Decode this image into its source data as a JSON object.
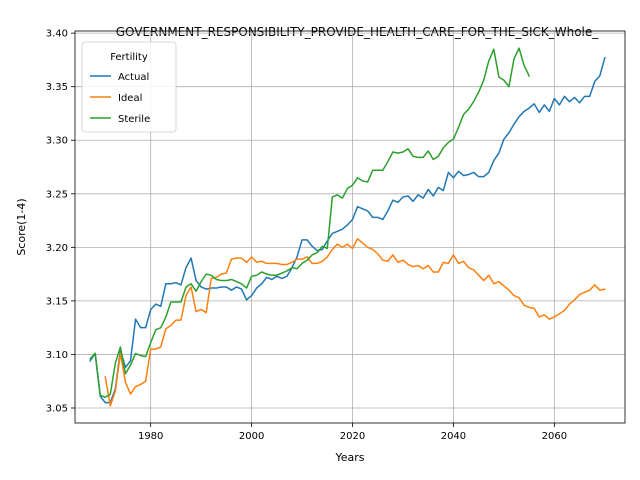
{
  "chart_data": {
    "type": "line",
    "title": "GOVERNMENT_RESPONSIBILITY_PROVIDE_HEALTH_CARE_FOR_THE_SICK_Whole_",
    "xlabel": "Years",
    "ylabel": "Score(1-4)",
    "xlim": [
      1965,
      2074
    ],
    "ylim": [
      3.036,
      3.402
    ],
    "xticks": [
      1980,
      2000,
      2020,
      2040,
      2060
    ],
    "yticks": [
      3.05,
      3.1,
      3.15,
      3.2,
      3.25,
      3.3,
      3.35,
      3.4
    ],
    "xtick_labels": [
      "1980",
      "2000",
      "2020",
      "2040",
      "2060"
    ],
    "ytick_labels": [
      "3.05",
      "3.10",
      "3.15",
      "3.20",
      "3.25",
      "3.30",
      "3.35",
      "3.40"
    ],
    "grid": true,
    "legend": {
      "title": "Fertility",
      "position": "upper-left"
    },
    "series": [
      {
        "name": "Actual",
        "color": "#1f77b4",
        "x": [
          1968,
          1969,
          1970,
          1971,
          1972,
          1973,
          1974,
          1975,
          1976,
          1977,
          1978,
          1979,
          1980,
          1981,
          1982,
          1983,
          1984,
          1985,
          1986,
          1987,
          1988,
          1989,
          1990,
          1991,
          1992,
          1993,
          1994,
          1995,
          1996,
          1997,
          1998,
          1999,
          2000,
          2001,
          2002,
          2003,
          2004,
          2005,
          2006,
          2007,
          2008,
          2009,
          2010,
          2011,
          2012,
          2013,
          2014,
          2015,
          2016,
          2017,
          2018,
          2019,
          2020,
          2021,
          2022,
          2023,
          2024,
          2025,
          2026,
          2027,
          2028,
          2029,
          2030,
          2031,
          2032,
          2033,
          2034,
          2035,
          2036,
          2037,
          2038,
          2039,
          2040,
          2041,
          2042,
          2043,
          2044,
          2045,
          2046,
          2047,
          2048,
          2049,
          2050,
          2051,
          2052,
          2053,
          2054,
          2055,
          2056,
          2057,
          2058,
          2059,
          2060,
          2061,
          2062,
          2063,
          2064,
          2065,
          2066,
          2067,
          2068,
          2069,
          2070
        ],
        "y": [
          3.094,
          3.101,
          3.061,
          3.055,
          3.055,
          3.068,
          3.104,
          3.088,
          3.094,
          3.133,
          3.125,
          3.125,
          3.142,
          3.147,
          3.145,
          3.166,
          3.166,
          3.167,
          3.165,
          3.181,
          3.19,
          3.169,
          3.163,
          3.161,
          3.162,
          3.162,
          3.163,
          3.163,
          3.16,
          3.163,
          3.161,
          3.151,
          3.155,
          3.162,
          3.166,
          3.172,
          3.17,
          3.173,
          3.171,
          3.173,
          3.181,
          3.191,
          3.207,
          3.207,
          3.201,
          3.197,
          3.198,
          3.206,
          3.213,
          3.215,
          3.217,
          3.221,
          3.226,
          3.238,
          3.236,
          3.234,
          3.228,
          3.228,
          3.226,
          3.234,
          3.244,
          3.242,
          3.247,
          3.248,
          3.243,
          3.249,
          3.246,
          3.254,
          3.248,
          3.256,
          3.253,
          3.27,
          3.265,
          3.271,
          3.267,
          3.268,
          3.27,
          3.266,
          3.266,
          3.27,
          3.281,
          3.288,
          3.301,
          3.307,
          3.315,
          3.322,
          3.327,
          3.33,
          3.334,
          3.326,
          3.333,
          3.327,
          3.339,
          3.333,
          3.341,
          3.336,
          3.34,
          3.335,
          3.341,
          3.341,
          3.355,
          3.36,
          3.377
        ]
      },
      {
        "name": "Ideal",
        "color": "#ff7f0e",
        "x": [
          1971,
          1972,
          1973,
          1974,
          1975,
          1976,
          1977,
          1978,
          1979,
          1980,
          1981,
          1982,
          1983,
          1984,
          1985,
          1986,
          1987,
          1988,
          1989,
          1990,
          1991,
          1992,
          1993,
          1994,
          1995,
          1996,
          1997,
          1998,
          1999,
          2000,
          2001,
          2002,
          2003,
          2004,
          2005,
          2006,
          2007,
          2008,
          2009,
          2010,
          2011,
          2012,
          2013,
          2014,
          2015,
          2016,
          2017,
          2018,
          2019,
          2020,
          2021,
          2022,
          2023,
          2024,
          2025,
          2026,
          2027,
          2028,
          2029,
          2030,
          2031,
          2032,
          2033,
          2034,
          2035,
          2036,
          2037,
          2038,
          2039,
          2040,
          2041,
          2042,
          2043,
          2044,
          2045,
          2046,
          2047,
          2048,
          2049,
          2050,
          2051,
          2052,
          2053,
          2054,
          2055,
          2056,
          2057,
          2058,
          2059,
          2060,
          2061,
          2062,
          2063,
          2064,
          2065,
          2066,
          2067,
          2068,
          2069,
          2070
        ],
        "y": [
          3.079,
          3.052,
          3.066,
          3.101,
          3.074,
          3.063,
          3.07,
          3.072,
          3.075,
          3.105,
          3.105,
          3.107,
          3.124,
          3.127,
          3.132,
          3.132,
          3.155,
          3.163,
          3.14,
          3.142,
          3.139,
          3.171,
          3.172,
          3.175,
          3.176,
          3.189,
          3.19,
          3.19,
          3.186,
          3.191,
          3.186,
          3.187,
          3.185,
          3.185,
          3.185,
          3.184,
          3.184,
          3.186,
          3.189,
          3.189,
          3.191,
          3.185,
          3.185,
          3.187,
          3.191,
          3.198,
          3.203,
          3.2,
          3.203,
          3.199,
          3.208,
          3.204,
          3.2,
          3.198,
          3.194,
          3.188,
          3.187,
          3.193,
          3.186,
          3.188,
          3.184,
          3.182,
          3.183,
          3.18,
          3.183,
          3.177,
          3.177,
          3.186,
          3.185,
          3.193,
          3.185,
          3.187,
          3.181,
          3.179,
          3.174,
          3.169,
          3.174,
          3.166,
          3.168,
          3.164,
          3.16,
          3.155,
          3.153,
          3.146,
          3.144,
          3.143,
          3.135,
          3.137,
          3.133,
          3.135,
          3.138,
          3.141,
          3.147,
          3.151,
          3.156,
          3.158,
          3.16,
          3.165,
          3.16,
          3.161
        ]
      },
      {
        "name": "Sterile",
        "color": "#2ca02c",
        "x": [
          1968,
          1969,
          1970,
          1971,
          1972,
          1973,
          1974,
          1975,
          1976,
          1977,
          1978,
          1979,
          1980,
          1981,
          1982,
          1983,
          1984,
          1985,
          1986,
          1987,
          1988,
          1989,
          1990,
          1991,
          1992,
          1993,
          1994,
          1995,
          1996,
          1997,
          1998,
          1999,
          2000,
          2001,
          2002,
          2003,
          2004,
          2005,
          2006,
          2007,
          2008,
          2009,
          2010,
          2011,
          2012,
          2013,
          2014,
          2015,
          2016,
          2017,
          2018,
          2019,
          2020,
          2021,
          2022,
          2023,
          2024,
          2025,
          2026,
          2027,
          2028,
          2029,
          2030,
          2031,
          2032,
          2033,
          2034,
          2035,
          2036,
          2037,
          2038,
          2039,
          2040,
          2041,
          2042,
          2043,
          2044,
          2045,
          2046,
          2047,
          2048,
          2049,
          2050,
          2051,
          2052,
          2053,
          2054,
          2055
        ],
        "y": [
          3.096,
          3.101,
          3.062,
          3.06,
          3.063,
          3.092,
          3.107,
          3.082,
          3.09,
          3.101,
          3.099,
          3.098,
          3.111,
          3.123,
          3.125,
          3.135,
          3.149,
          3.149,
          3.149,
          3.163,
          3.166,
          3.159,
          3.168,
          3.175,
          3.174,
          3.17,
          3.169,
          3.169,
          3.17,
          3.168,
          3.166,
          3.162,
          3.173,
          3.174,
          3.177,
          3.175,
          3.174,
          3.174,
          3.176,
          3.178,
          3.181,
          3.18,
          3.185,
          3.188,
          3.193,
          3.195,
          3.201,
          3.199,
          3.247,
          3.249,
          3.246,
          3.255,
          3.258,
          3.265,
          3.262,
          3.261,
          3.272,
          3.272,
          3.272,
          3.28,
          3.289,
          3.288,
          3.289,
          3.292,
          3.285,
          3.284,
          3.284,
          3.29,
          3.282,
          3.285,
          3.293,
          3.298,
          3.301,
          3.312,
          3.324,
          3.329,
          3.336,
          3.345,
          3.356,
          3.374,
          3.385,
          3.359,
          3.356,
          3.35,
          3.376,
          3.386,
          3.37,
          3.36
        ]
      }
    ]
  }
}
